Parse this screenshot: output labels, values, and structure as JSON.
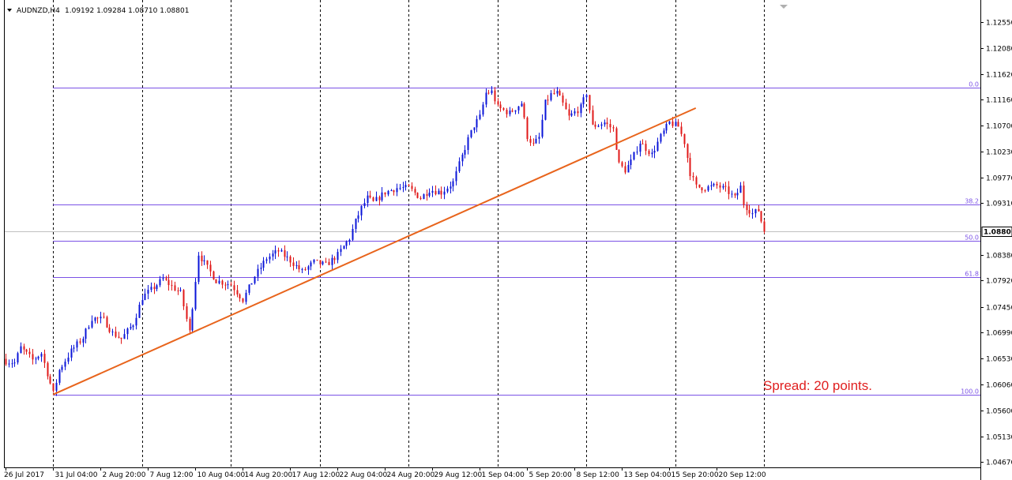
{
  "symbol_title": "AUDNZD,H4",
  "ohlc": "1.09192 1.09284 1.08710 1.08801",
  "spread_text": "Spread: 20 points.",
  "current_price": "1.08801",
  "colors": {
    "bull": "#0a14d8",
    "bear": "#e01818",
    "wick": "#000000",
    "fib": "#7b52e6",
    "trendline": "#e8641c",
    "grid": "#000000"
  },
  "chart_data": {
    "type": "candlestick",
    "ylim": [
      1.0462,
      1.1293
    ],
    "y_ticks": [
      "1.12550",
      "1.12080",
      "1.11620",
      "1.11160",
      "1.10700",
      "1.10230",
      "1.09770",
      "1.09310",
      "1.08380",
      "1.07920",
      "1.07450",
      "1.06990",
      "1.06530",
      "1.06060",
      "1.05600",
      "1.05130",
      "1.04670"
    ],
    "x_labels": [
      "26 Jul 2017",
      "31 Jul 04:00",
      "2 Aug 20:00",
      "7 Aug 12:00",
      "10 Aug 04:00",
      "14 Aug 20:00",
      "17 Aug 12:00",
      "22 Aug 04:00",
      "24 Aug 20:00",
      "29 Aug 12:00",
      "1 Sep 04:00",
      "5 Sep 20:00",
      "8 Sep 12:00",
      "13 Sep 04:00",
      "15 Sep 20:00",
      "20 Sep 12:00"
    ],
    "x_label_index": [
      0,
      16,
      32,
      48,
      64,
      80,
      96,
      112,
      128,
      144,
      160,
      176,
      192,
      208,
      224,
      240
    ],
    "vertical_grid_index": [
      16,
      46,
      76,
      106,
      136,
      166,
      196,
      226,
      256
    ],
    "fib_levels": [
      {
        "label": "0.0",
        "price": 1.1138
      },
      {
        "label": "38.2",
        "price": 1.0928
      },
      {
        "label": "50.0",
        "price": 1.0863
      },
      {
        "label": "61.8",
        "price": 1.0798
      },
      {
        "label": "100.0",
        "price": 1.0588
      }
    ],
    "trendline": {
      "start": {
        "index": 16,
        "price": 1.0588
      },
      "end": {
        "index": 233,
        "price": 1.1101
      }
    },
    "path": [
      [
        0,
        1.0648
      ],
      [
        3,
        1.0645
      ],
      [
        5,
        1.0672
      ],
      [
        9,
        1.065
      ],
      [
        12,
        1.0662
      ],
      [
        16,
        1.059
      ],
      [
        18,
        1.0632
      ],
      [
        22,
        1.0666
      ],
      [
        26,
        1.069
      ],
      [
        29,
        1.0725
      ],
      [
        33,
        1.0722
      ],
      [
        36,
        1.0698
      ],
      [
        39,
        1.0688
      ],
      [
        43,
        1.0715
      ],
      [
        46,
        1.0762
      ],
      [
        50,
        1.078
      ],
      [
        53,
        1.0795
      ],
      [
        56,
        1.0782
      ],
      [
        59,
        1.077
      ],
      [
        62,
        1.07
      ],
      [
        65,
        1.084
      ],
      [
        68,
        1.0815
      ],
      [
        71,
        1.0792
      ],
      [
        76,
        1.0785
      ],
      [
        80,
        1.0758
      ],
      [
        84,
        1.08
      ],
      [
        88,
        1.0832
      ],
      [
        92,
        1.0845
      ],
      [
        96,
        1.0828
      ],
      [
        100,
        1.0808
      ],
      [
        104,
        1.0825
      ],
      [
        108,
        1.082
      ],
      [
        112,
        1.0838
      ],
      [
        116,
        1.0868
      ],
      [
        118,
        1.0898
      ],
      [
        120,
        1.0922
      ],
      [
        122,
        1.094
      ],
      [
        124,
        1.0932
      ],
      [
        128,
        1.095
      ],
      [
        132,
        1.0958
      ],
      [
        136,
        1.0958
      ],
      [
        140,
        1.094
      ],
      [
        143,
        1.0955
      ],
      [
        147,
        1.095
      ],
      [
        151,
        1.0968
      ],
      [
        153,
        1.1
      ],
      [
        156,
        1.1045
      ],
      [
        158,
        1.107
      ],
      [
        160,
        1.1085
      ],
      [
        162,
        1.1128
      ],
      [
        164,
        1.113
      ],
      [
        166,
        1.1102
      ],
      [
        170,
        1.1092
      ],
      [
        174,
        1.111
      ],
      [
        176,
        1.105
      ],
      [
        178,
        1.1035
      ],
      [
        180,
        1.1048
      ],
      [
        182,
        1.111
      ],
      [
        184,
        1.1125
      ],
      [
        186,
        1.1128
      ],
      [
        188,
        1.1108
      ],
      [
        190,
        1.1085
      ],
      [
        194,
        1.1102
      ],
      [
        196,
        1.1128
      ],
      [
        198,
        1.1068
      ],
      [
        202,
        1.1075
      ],
      [
        205,
        1.1063
      ],
      [
        207,
        1.1
      ],
      [
        209,
        1.099
      ],
      [
        211,
        1.1005
      ],
      [
        214,
        1.104
      ],
      [
        218,
        1.1018
      ],
      [
        221,
        1.105
      ],
      [
        224,
        1.1075
      ],
      [
        227,
        1.1068
      ],
      [
        229,
        1.104
      ],
      [
        231,
        1.0985
      ],
      [
        233,
        1.096
      ],
      [
        236,
        1.0958
      ],
      [
        240,
        1.0962
      ],
      [
        243,
        1.0955
      ],
      [
        246,
        1.094
      ],
      [
        248,
        1.096
      ],
      [
        249,
        1.093
      ],
      [
        252,
        1.0912
      ],
      [
        254,
        1.0918
      ],
      [
        256,
        1.088
      ]
    ]
  }
}
